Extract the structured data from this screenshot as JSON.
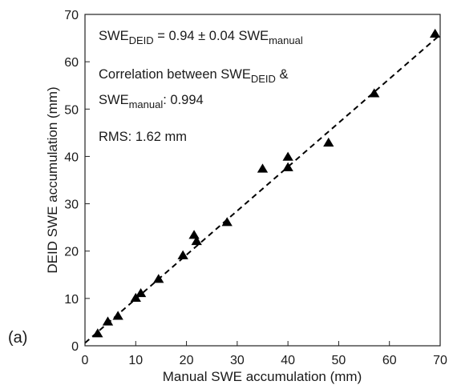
{
  "chart_data": {
    "type": "scatter",
    "panel_label": "(a)",
    "xlabel": "Manual SWE accumulation (mm)",
    "ylabel": "DEID SWE accumulation (mm)",
    "xlim": [
      0,
      70
    ],
    "ylim": [
      0,
      70
    ],
    "xticks": [
      "0",
      "10",
      "20",
      "30",
      "40",
      "50",
      "60",
      "70"
    ],
    "yticks": [
      "0",
      "10",
      "20",
      "30",
      "40",
      "50",
      "60",
      "70"
    ],
    "grid": false,
    "legend": "none",
    "marker": "filled-triangle",
    "series": [
      {
        "points": [
          {
            "x": 2.5,
            "y": 2.5
          },
          {
            "x": 4.5,
            "y": 5.0
          },
          {
            "x": 6.5,
            "y": 6.2
          },
          {
            "x": 10.0,
            "y": 10.0
          },
          {
            "x": 11.0,
            "y": 11.0
          },
          {
            "x": 14.5,
            "y": 14.0
          },
          {
            "x": 19.3,
            "y": 19.0
          },
          {
            "x": 21.5,
            "y": 23.3
          },
          {
            "x": 22.0,
            "y": 22.0
          },
          {
            "x": 28.0,
            "y": 26.0
          },
          {
            "x": 35.0,
            "y": 37.3
          },
          {
            "x": 40.0,
            "y": 39.8
          },
          {
            "x": 40.0,
            "y": 37.6
          },
          {
            "x": 48.0,
            "y": 42.8
          },
          {
            "x": 57.0,
            "y": 53.2
          },
          {
            "x": 69.0,
            "y": 65.8
          }
        ]
      }
    ],
    "fit_line": {
      "style": "dashed",
      "x_range": [
        0,
        70
      ],
      "intercept": 0.6,
      "slope": 0.93
    },
    "annotations": {
      "equation": {
        "lhs_base": "SWE",
        "lhs_sub": "DEID",
        "middle": " = 0.94 ± 0.04 SWE",
        "rhs_sub": "manual"
      },
      "correlation_line1": {
        "text": "Correlation between SWE",
        "sub": "DEID",
        "tail": " &"
      },
      "correlation_line2": {
        "base": "SWE",
        "sub": "manual",
        "tail": ": 0.994"
      },
      "rms": "RMS: 1.62 mm"
    }
  }
}
